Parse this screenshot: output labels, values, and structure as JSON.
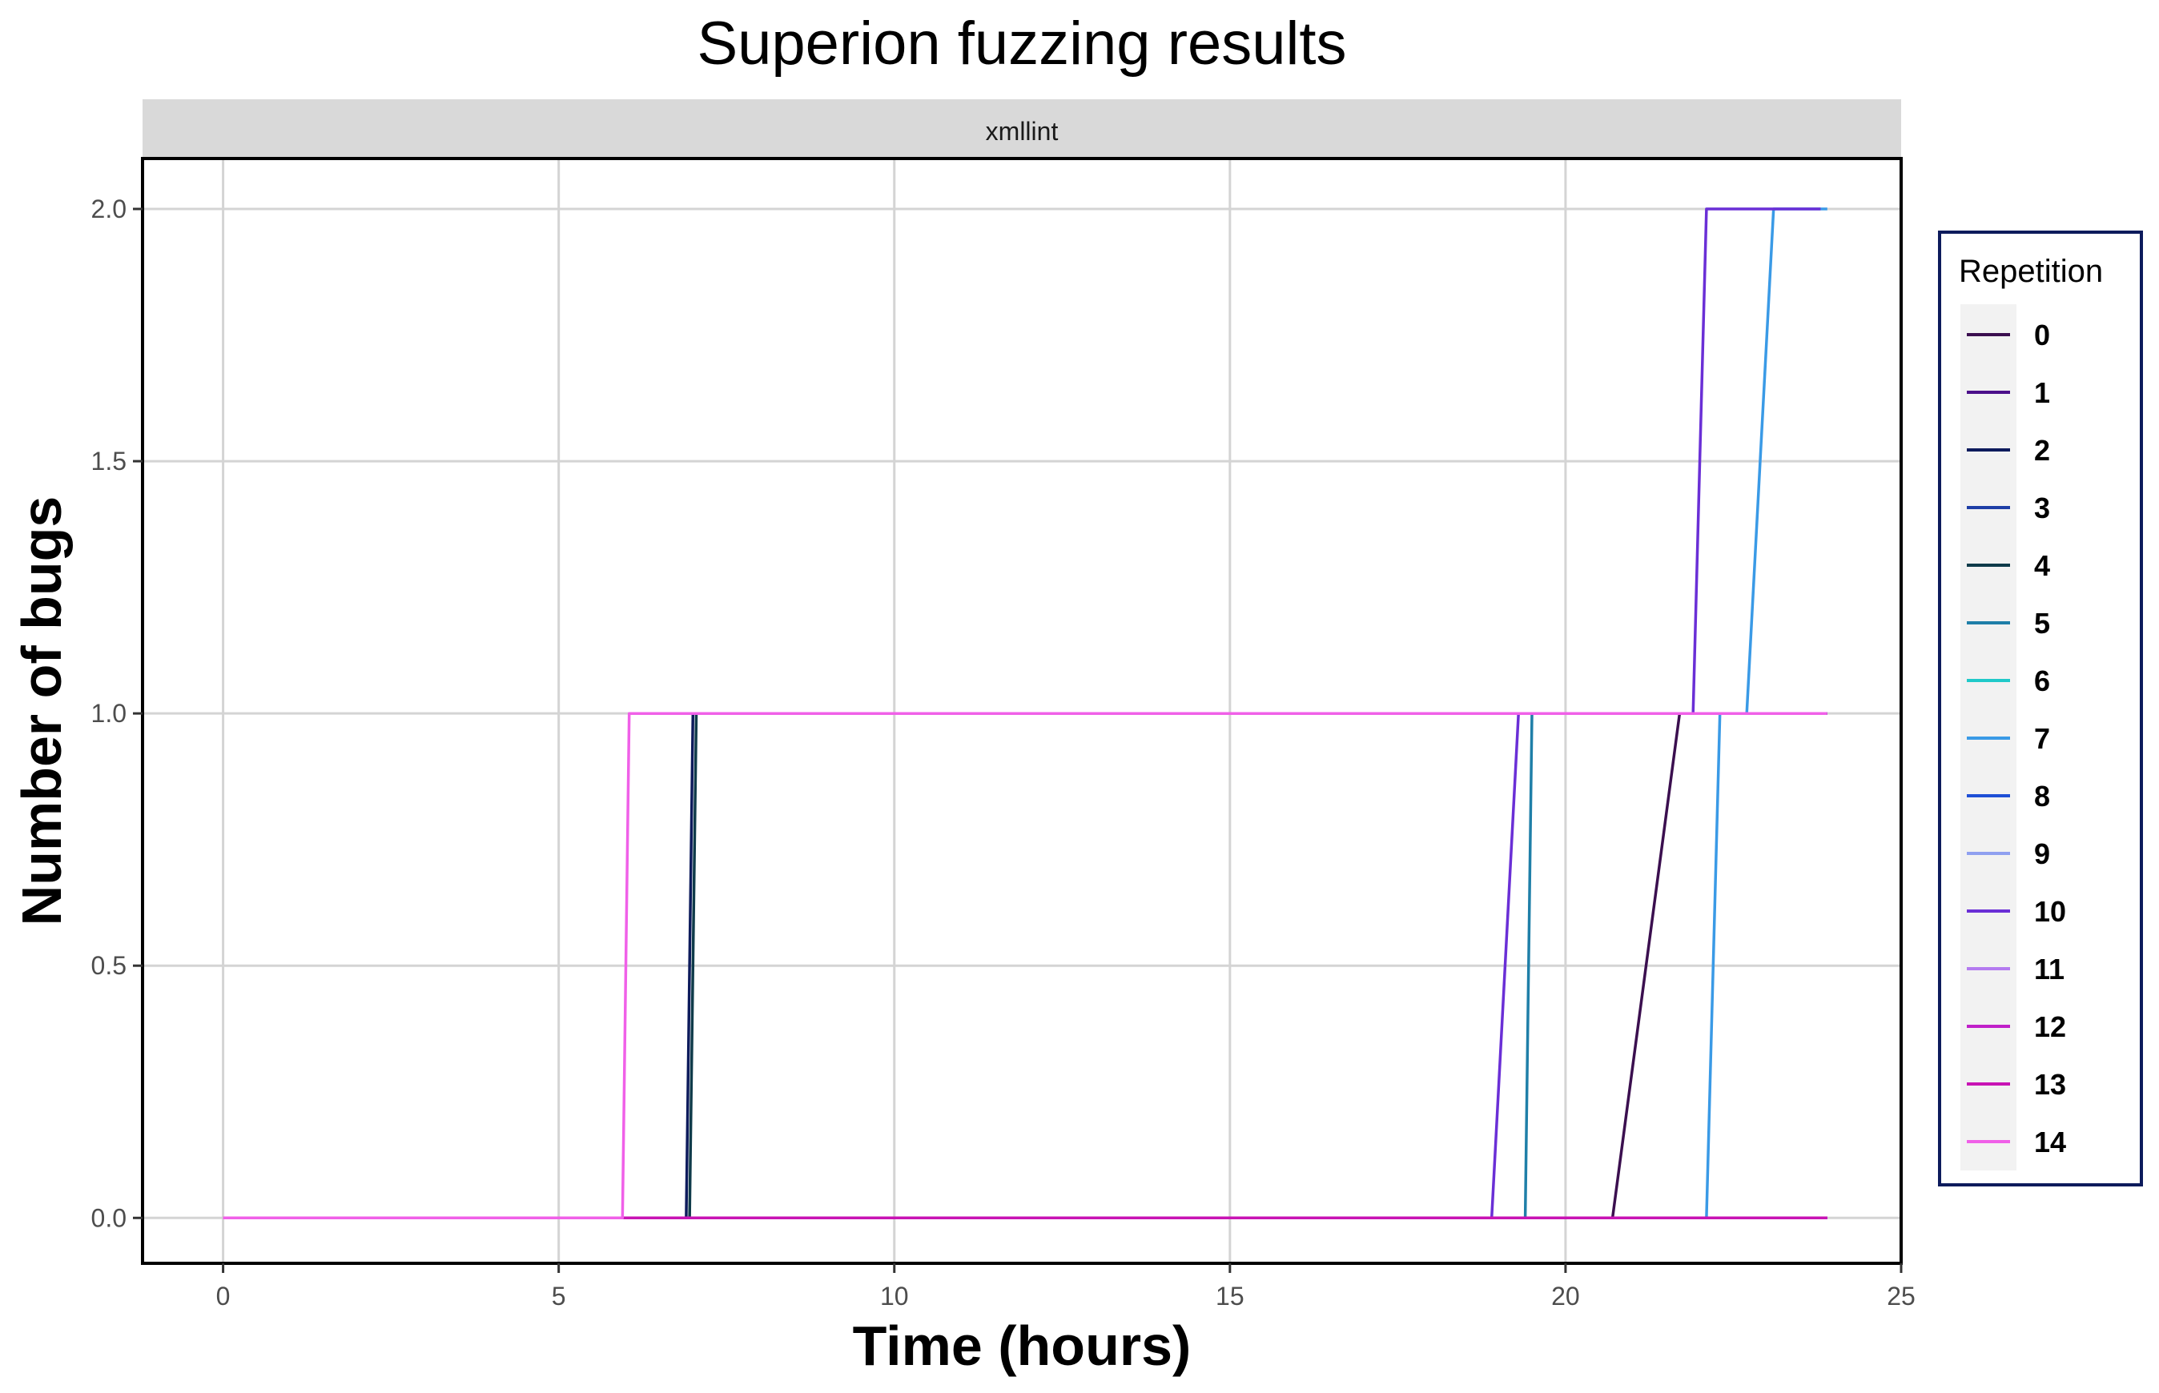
{
  "chart_data": {
    "type": "line",
    "title": "Superion fuzzing results",
    "facet": "xmllint",
    "xlabel": "Time (hours)",
    "ylabel": "Number of bugs",
    "xlim": [
      -1.2,
      25.0
    ],
    "ylim": [
      -0.09,
      2.1
    ],
    "xticks": [
      0,
      5,
      10,
      15,
      20,
      25
    ],
    "xtick_labels": [
      "0",
      "5",
      "10",
      "15",
      "20",
      "25"
    ],
    "yticks": [
      0,
      0.5,
      1,
      1.5,
      2
    ],
    "ytick_labels": [
      "0.0",
      "0.5",
      "1.0",
      "1.5",
      "2.0"
    ],
    "grid": true,
    "legend": {
      "title": "Repetition",
      "position": "right"
    },
    "series": [
      {
        "name": "0",
        "color": "#3b0f4f",
        "x": [
          0,
          20.7,
          21.7,
          23.9
        ],
        "y": [
          0,
          0,
          1,
          1
        ]
      },
      {
        "name": "1",
        "color": "#4b0f8a",
        "x": [
          0,
          23.9
        ],
        "y": [
          0,
          0
        ]
      },
      {
        "name": "2",
        "color": "#0d1b5c",
        "x": [
          0,
          6.9,
          7.0,
          23.9
        ],
        "y": [
          0,
          0,
          1,
          1
        ]
      },
      {
        "name": "3",
        "color": "#1e3ea6",
        "x": [
          0,
          23.9
        ],
        "y": [
          0,
          0
        ]
      },
      {
        "name": "4",
        "color": "#0f3b4a",
        "x": [
          0,
          6.95,
          7.05,
          23.9
        ],
        "y": [
          0,
          0,
          1,
          1
        ]
      },
      {
        "name": "5",
        "color": "#1f7fa8",
        "x": [
          0,
          19.4,
          19.5,
          23.9
        ],
        "y": [
          0,
          0,
          1,
          1
        ]
      },
      {
        "name": "6",
        "color": "#20c9c9",
        "x": [
          0,
          23.9
        ],
        "y": [
          0,
          0
        ]
      },
      {
        "name": "7",
        "color": "#3a9ae6",
        "x": [
          0,
          22.1,
          22.3,
          22.7,
          23.1,
          23.9
        ],
        "y": [
          0,
          0,
          1,
          1,
          2,
          2
        ]
      },
      {
        "name": "8",
        "color": "#1f4fd6",
        "x": [
          0,
          23.9
        ],
        "y": [
          0,
          0
        ]
      },
      {
        "name": "9",
        "color": "#8fa0f0",
        "x": [
          0,
          23.9
        ],
        "y": [
          0,
          0
        ]
      },
      {
        "name": "10",
        "color": "#6a2fd6",
        "x": [
          0,
          18.9,
          19.3,
          21.9,
          22.1,
          23.8
        ],
        "y": [
          0,
          0,
          1,
          1,
          2,
          2
        ]
      },
      {
        "name": "11",
        "color": "#b47bf0",
        "x": [
          0,
          23.9
        ],
        "y": [
          0,
          0
        ]
      },
      {
        "name": "12",
        "color": "#c020c9",
        "x": [
          0,
          23.9
        ],
        "y": [
          0,
          0
        ]
      },
      {
        "name": "13",
        "color": "#c814b4",
        "x": [
          0,
          23.9
        ],
        "y": [
          0,
          0
        ]
      },
      {
        "name": "14",
        "color": "#f060e8",
        "x": [
          0,
          5.95,
          6.05,
          23.9
        ],
        "y": [
          0,
          0,
          1,
          1
        ]
      }
    ]
  }
}
